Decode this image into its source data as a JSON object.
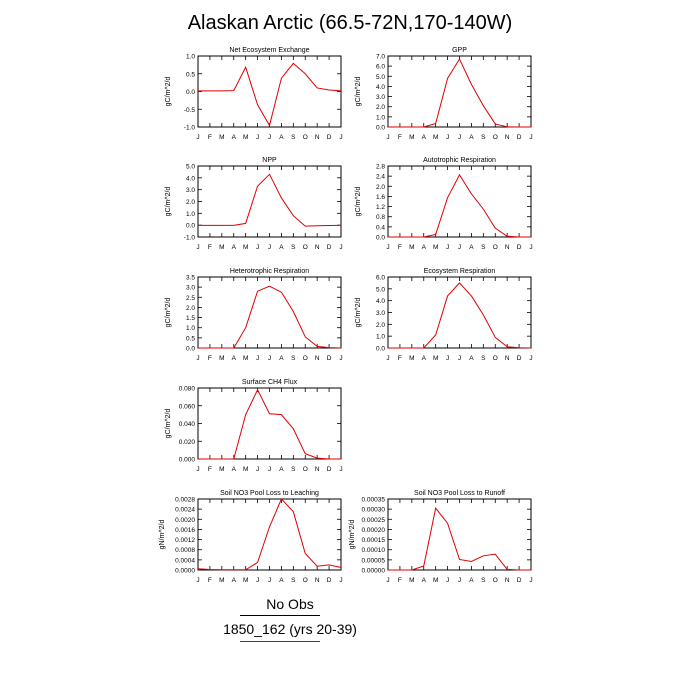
{
  "page": {
    "title": "Alaskan Arctic (66.5-72N,170-140W)"
  },
  "legend": {
    "obs_label": "No Obs",
    "model_label": "1850_162 (yrs 20-39)",
    "obs_color": "#000000",
    "model_color": "#e00000"
  },
  "chart_data": [
    {
      "type": "line",
      "title": "Net Ecosystem Exchange",
      "ylabel": "gC/m^2/d",
      "categories": [
        "J",
        "F",
        "M",
        "A",
        "M",
        "J",
        "J",
        "A",
        "S",
        "O",
        "N",
        "D",
        "J"
      ],
      "ylim": [
        -1.2,
        1.2
      ],
      "yticks": [
        "-1.0",
        "-0.5",
        "0.0",
        "0.5",
        "1.0"
      ],
      "series": [
        {
          "values": [
            0.02,
            0.02,
            0.02,
            0.03,
            0.82,
            -0.45,
            -1.15,
            0.45,
            0.95,
            0.6,
            0.12,
            0.05,
            0.02
          ]
        }
      ]
    },
    {
      "type": "line",
      "title": "GPP",
      "ylabel": "gC/m^2/d",
      "categories": [
        "J",
        "F",
        "M",
        "A",
        "M",
        "J",
        "J",
        "A",
        "S",
        "O",
        "N",
        "D",
        "J"
      ],
      "ylim": [
        0,
        7.0
      ],
      "yticks": [
        "0.0",
        "1.0",
        "2.0",
        "3.0",
        "4.0",
        "5.0",
        "6.0",
        "7.0"
      ],
      "series": [
        {
          "values": [
            0,
            0,
            0,
            0,
            0.35,
            4.8,
            6.7,
            4.2,
            2.1,
            0.3,
            0.02,
            0,
            0
          ]
        }
      ]
    },
    {
      "type": "line",
      "title": "NPP",
      "ylabel": "gC/m^2/d",
      "categories": [
        "J",
        "F",
        "M",
        "A",
        "M",
        "J",
        "J",
        "A",
        "S",
        "O",
        "N",
        "D",
        "J"
      ],
      "ylim": [
        -1.0,
        5.0
      ],
      "yticks": [
        "-1.0",
        "0.0",
        "1.0",
        "2.0",
        "3.0",
        "4.0",
        "5.0"
      ],
      "series": [
        {
          "values": [
            -0.02,
            -0.02,
            -0.02,
            -0.02,
            0.15,
            3.3,
            4.3,
            2.3,
            0.8,
            -0.08,
            -0.05,
            -0.03,
            -0.02
          ]
        }
      ]
    },
    {
      "type": "line",
      "title": "Autotrophic Respiration",
      "ylabel": "gC/m^2/d",
      "categories": [
        "J",
        "F",
        "M",
        "A",
        "M",
        "J",
        "J",
        "A",
        "S",
        "O",
        "N",
        "D",
        "J"
      ],
      "ylim": [
        0,
        2.8
      ],
      "yticks": [
        "0.0",
        "0.4",
        "0.8",
        "1.2",
        "1.6",
        "2.0",
        "2.4",
        "2.8"
      ],
      "series": [
        {
          "values": [
            0,
            0,
            0,
            0,
            0.1,
            1.55,
            2.45,
            1.7,
            1.1,
            0.35,
            0.03,
            0,
            0
          ]
        }
      ]
    },
    {
      "type": "line",
      "title": "Heterotrophic Respiration",
      "ylabel": "gC/m^2/d",
      "categories": [
        "J",
        "F",
        "M",
        "A",
        "M",
        "J",
        "J",
        "A",
        "S",
        "O",
        "N",
        "D",
        "J"
      ],
      "ylim": [
        0,
        3.5
      ],
      "yticks": [
        "0.0",
        "0.5",
        "1.0",
        "1.5",
        "2.0",
        "2.5",
        "3.0",
        "3.5"
      ],
      "series": [
        {
          "values": [
            0,
            0,
            0,
            0,
            1.0,
            2.8,
            3.05,
            2.75,
            1.8,
            0.55,
            0.08,
            0.02,
            0
          ]
        }
      ]
    },
    {
      "type": "line",
      "title": "Ecosystem Respiration",
      "ylabel": "gC/m^2/d",
      "categories": [
        "J",
        "F",
        "M",
        "A",
        "M",
        "J",
        "J",
        "A",
        "S",
        "O",
        "N",
        "D",
        "J"
      ],
      "ylim": [
        0,
        6.0
      ],
      "yticks": [
        "0.0",
        "1.0",
        "2.0",
        "3.0",
        "4.0",
        "5.0",
        "6.0"
      ],
      "series": [
        {
          "values": [
            0,
            0,
            0,
            0,
            1.1,
            4.4,
            5.5,
            4.4,
            2.8,
            0.9,
            0.1,
            0.02,
            0
          ]
        }
      ]
    },
    {
      "type": "line",
      "title": "Surface CH4 Flux",
      "ylabel": "gC/m^2/d",
      "categories": [
        "J",
        "F",
        "M",
        "A",
        "M",
        "J",
        "J",
        "A",
        "S",
        "O",
        "N",
        "D",
        "J"
      ],
      "ylim": [
        0,
        0.08
      ],
      "yticks": [
        "0.000",
        "0.020",
        "0.040",
        "0.060",
        "0.080"
      ],
      "series": [
        {
          "values": [
            0,
            0,
            0,
            0,
            0.05,
            0.078,
            0.051,
            0.05,
            0.034,
            0.006,
            0.001,
            0,
            0
          ]
        }
      ]
    },
    {
      "type": "line",
      "title": "Soil NO3 Pool Loss to Leaching",
      "ylabel": "gN/m^2/d",
      "categories": [
        "J",
        "F",
        "M",
        "A",
        "M",
        "J",
        "J",
        "A",
        "S",
        "O",
        "N",
        "D",
        "J"
      ],
      "ylim": [
        0,
        0.0028
      ],
      "yticks": [
        "0.0000",
        "0.0004",
        "0.0008",
        "0.0012",
        "0.0016",
        "0.0020",
        "0.0024",
        "0.0028"
      ],
      "series": [
        {
          "values": [
            5e-05,
            2e-05,
            1e-05,
            1e-05,
            1e-05,
            0.0003,
            0.0017,
            0.0028,
            0.0023,
            0.00065,
            0.00015,
            0.0002,
            0.0001
          ]
        }
      ]
    },
    {
      "type": "line",
      "title": "Soil NO3 Pool Loss to Runoff",
      "ylabel": "gN/m^2/d",
      "categories": [
        "J",
        "F",
        "M",
        "A",
        "M",
        "J",
        "J",
        "A",
        "S",
        "O",
        "N",
        "D",
        "J"
      ],
      "ylim": [
        0,
        0.00035
      ],
      "yticks": [
        "0.00000",
        "0.00005",
        "0.00010",
        "0.00015",
        "0.00020",
        "0.00025",
        "0.00030",
        "0.00035"
      ],
      "series": [
        {
          "values": [
            0,
            0,
            0,
            2e-05,
            0.000305,
            0.00023,
            5.2e-05,
            4.2e-05,
            7e-05,
            7.8e-05,
            3e-06,
            0,
            0
          ]
        }
      ]
    }
  ]
}
